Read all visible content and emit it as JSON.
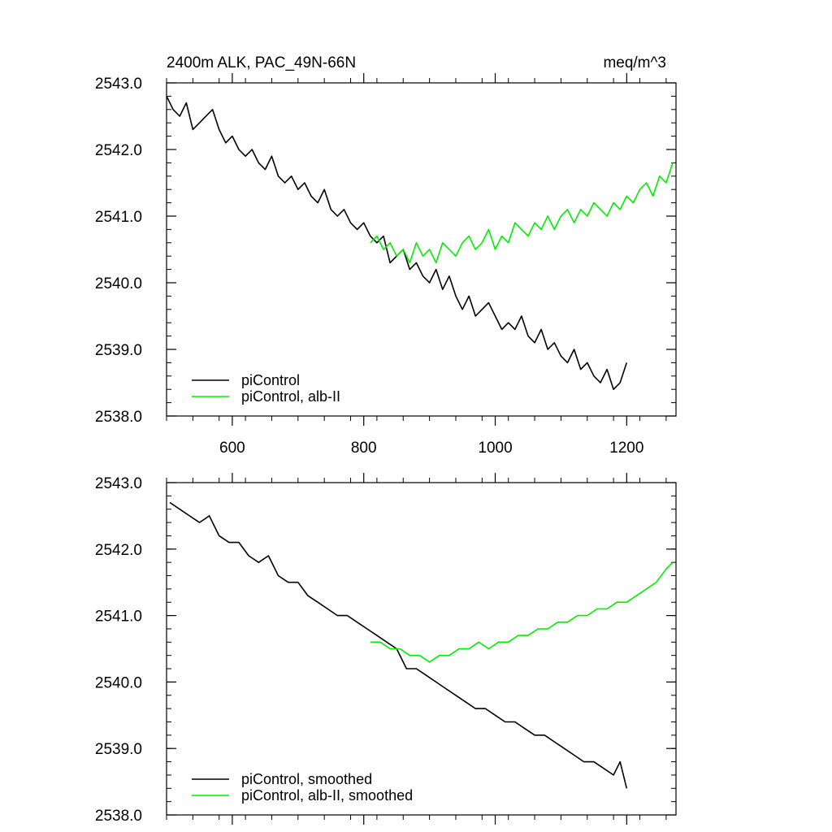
{
  "chart_data": [
    {
      "type": "line",
      "title": "2400m ALK, PAC_49N-66N",
      "units": "meq/m^3",
      "xlim": [
        500,
        1275
      ],
      "ylim": [
        2538.0,
        2543.0
      ],
      "xticks": [
        600,
        800,
        1000,
        1200
      ],
      "xtick_labels": [
        "600",
        "800",
        "1000",
        "1200"
      ],
      "yticks": [
        2538.0,
        2539.0,
        2540.0,
        2541.0,
        2542.0,
        2543.0
      ],
      "ytick_labels": [
        "2538.0",
        "2539.0",
        "2540.0",
        "2541.0",
        "2542.0",
        "2543.0"
      ],
      "grid": false,
      "legend_position": "bottom-left",
      "series": [
        {
          "name": "piControl",
          "color": "#000000",
          "x": [
            500,
            510,
            520,
            530,
            540,
            550,
            560,
            570,
            580,
            590,
            600,
            610,
            620,
            630,
            640,
            650,
            660,
            670,
            680,
            690,
            700,
            710,
            720,
            730,
            740,
            750,
            760,
            770,
            780,
            790,
            800,
            810,
            820,
            830,
            840,
            850,
            860,
            870,
            880,
            890,
            900,
            910,
            920,
            930,
            940,
            950,
            960,
            970,
            980,
            990,
            1000,
            1010,
            1020,
            1030,
            1040,
            1050,
            1060,
            1070,
            1080,
            1090,
            1100,
            1110,
            1120,
            1130,
            1140,
            1150,
            1160,
            1170,
            1180,
            1190,
            1200
          ],
          "y": [
            2542.8,
            2542.6,
            2542.5,
            2542.7,
            2542.3,
            2542.4,
            2542.5,
            2542.6,
            2542.3,
            2542.1,
            2542.2,
            2542.0,
            2541.9,
            2542.0,
            2541.8,
            2541.7,
            2541.9,
            2541.6,
            2541.5,
            2541.6,
            2541.4,
            2541.5,
            2541.3,
            2541.2,
            2541.4,
            2541.1,
            2541.0,
            2541.1,
            2540.9,
            2540.8,
            2540.9,
            2540.7,
            2540.6,
            2540.7,
            2540.3,
            2540.4,
            2540.5,
            2540.2,
            2540.3,
            2540.1,
            2540.0,
            2540.2,
            2539.9,
            2540.1,
            2539.8,
            2539.6,
            2539.8,
            2539.5,
            2539.6,
            2539.7,
            2539.5,
            2539.3,
            2539.4,
            2539.3,
            2539.5,
            2539.2,
            2539.1,
            2539.3,
            2539.0,
            2539.1,
            2538.9,
            2538.8,
            2539.0,
            2538.7,
            2538.8,
            2538.6,
            2538.5,
            2538.7,
            2538.4,
            2538.5,
            2538.8
          ]
        },
        {
          "name": "piControl, alb-II",
          "color": "#00ee00",
          "x": [
            810,
            820,
            830,
            840,
            850,
            860,
            870,
            880,
            890,
            900,
            910,
            920,
            930,
            940,
            950,
            960,
            970,
            980,
            990,
            1000,
            1010,
            1020,
            1030,
            1040,
            1050,
            1060,
            1070,
            1080,
            1090,
            1100,
            1110,
            1120,
            1130,
            1140,
            1150,
            1160,
            1170,
            1180,
            1190,
            1200,
            1210,
            1220,
            1230,
            1240,
            1250,
            1260,
            1270
          ],
          "y": [
            2540.6,
            2540.7,
            2540.5,
            2540.6,
            2540.4,
            2540.5,
            2540.3,
            2540.6,
            2540.4,
            2540.5,
            2540.3,
            2540.6,
            2540.5,
            2540.4,
            2540.6,
            2540.7,
            2540.5,
            2540.6,
            2540.8,
            2540.5,
            2540.7,
            2540.6,
            2540.9,
            2540.8,
            2540.7,
            2540.9,
            2540.8,
            2541.0,
            2540.8,
            2541.0,
            2541.1,
            2540.9,
            2541.1,
            2541.0,
            2541.2,
            2541.1,
            2541.0,
            2541.2,
            2541.1,
            2541.3,
            2541.2,
            2541.4,
            2541.5,
            2541.3,
            2541.6,
            2541.5,
            2541.8
          ]
        }
      ]
    },
    {
      "type": "line",
      "title": "",
      "units": "",
      "xlim": [
        500,
        1275
      ],
      "ylim": [
        2538.0,
        2543.0
      ],
      "xticks": [
        600,
        800,
        1000,
        1200
      ],
      "xtick_labels": [],
      "yticks": [
        2538.0,
        2539.0,
        2540.0,
        2541.0,
        2542.0,
        2543.0
      ],
      "ytick_labels": [
        "2538.0",
        "2539.0",
        "2540.0",
        "2541.0",
        "2542.0",
        "2543.0"
      ],
      "grid": false,
      "legend_position": "bottom-left",
      "series": [
        {
          "name": "piControl, smoothed",
          "color": "#000000",
          "x": [
            505,
            520,
            535,
            550,
            565,
            580,
            595,
            610,
            625,
            640,
            655,
            670,
            685,
            700,
            715,
            730,
            745,
            760,
            775,
            790,
            805,
            820,
            835,
            850,
            865,
            880,
            895,
            910,
            925,
            940,
            955,
            970,
            985,
            1000,
            1015,
            1030,
            1045,
            1060,
            1075,
            1090,
            1105,
            1120,
            1135,
            1150,
            1165,
            1180,
            1190,
            1200
          ],
          "y": [
            2542.7,
            2542.6,
            2542.5,
            2542.4,
            2542.5,
            2542.2,
            2542.1,
            2542.1,
            2541.9,
            2541.8,
            2541.9,
            2541.6,
            2541.5,
            2541.5,
            2541.3,
            2541.2,
            2541.1,
            2541.0,
            2541.0,
            2540.9,
            2540.8,
            2540.7,
            2540.6,
            2540.5,
            2540.2,
            2540.2,
            2540.1,
            2540.0,
            2539.9,
            2539.8,
            2539.7,
            2539.6,
            2539.6,
            2539.5,
            2539.4,
            2539.4,
            2539.3,
            2539.2,
            2539.2,
            2539.1,
            2539.0,
            2538.9,
            2538.8,
            2538.8,
            2538.7,
            2538.6,
            2538.8,
            2538.4
          ]
        },
        {
          "name": "piControl, alb-II, smoothed",
          "color": "#00ee00",
          "x": [
            810,
            825,
            840,
            855,
            870,
            885,
            900,
            915,
            930,
            945,
            960,
            975,
            990,
            1005,
            1020,
            1035,
            1050,
            1065,
            1080,
            1095,
            1110,
            1125,
            1140,
            1155,
            1170,
            1185,
            1200,
            1215,
            1230,
            1245,
            1260,
            1270
          ],
          "y": [
            2540.6,
            2540.6,
            2540.5,
            2540.5,
            2540.4,
            2540.4,
            2540.3,
            2540.4,
            2540.4,
            2540.5,
            2540.5,
            2540.6,
            2540.5,
            2540.6,
            2540.6,
            2540.7,
            2540.7,
            2540.8,
            2540.8,
            2540.9,
            2540.9,
            2541.0,
            2541.0,
            2541.1,
            2541.1,
            2541.2,
            2541.2,
            2541.3,
            2541.4,
            2541.5,
            2541.7,
            2541.8
          ]
        }
      ]
    }
  ]
}
